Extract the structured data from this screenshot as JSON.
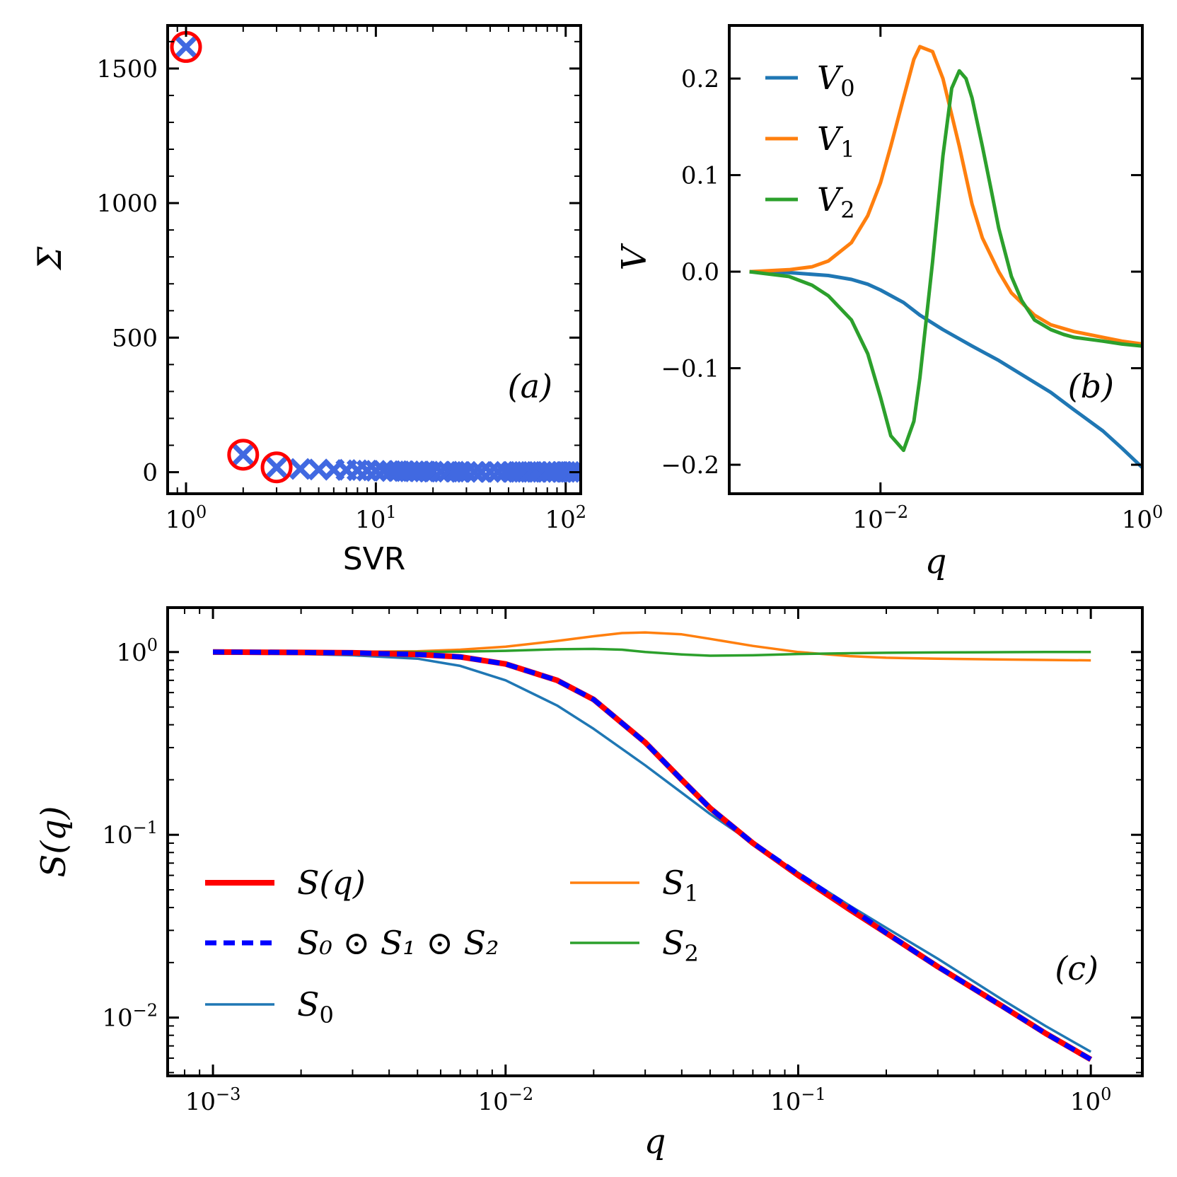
{
  "chart_data": [
    {
      "panel": "(a)",
      "type": "scatter",
      "xlabel": "SVR",
      "ylabel": "Σ",
      "xscale": "log",
      "xlim": [
        0.8,
        120
      ],
      "ylim": [
        -80,
        1660
      ],
      "xticks": [
        {
          "value": 1,
          "label": "10",
          "exp": "0"
        },
        {
          "value": 10,
          "label": "10",
          "exp": "1"
        },
        {
          "value": 100,
          "label": "10",
          "exp": "2"
        }
      ],
      "yticks": [
        {
          "value": 0,
          "label": "0"
        },
        {
          "value": 500,
          "label": "500"
        },
        {
          "value": 1000,
          "label": "1000"
        },
        {
          "value": 1500,
          "label": "1500"
        }
      ],
      "series": [
        {
          "marker": "x",
          "color": "#4169e1",
          "x": [
            1,
            2,
            3,
            4,
            5,
            6,
            7,
            8,
            9,
            10,
            11,
            12,
            13,
            14,
            15,
            16,
            17,
            18,
            19,
            20,
            22,
            24,
            26,
            28,
            30,
            33,
            36,
            40,
            44,
            48,
            52,
            56,
            60,
            65,
            70,
            75,
            80,
            85,
            90,
            95,
            100,
            105,
            110,
            115
          ],
          "y": [
            1580,
            65,
            18,
            12,
            10,
            9,
            8,
            7,
            6,
            5,
            5,
            4,
            4,
            4,
            3,
            3,
            3,
            3,
            2,
            2,
            2,
            2,
            2,
            1,
            1,
            1,
            1,
            1,
            1,
            1,
            1,
            1,
            1,
            1,
            1,
            1,
            1,
            1,
            1,
            1,
            1,
            1,
            1,
            1
          ]
        },
        {
          "marker": "circle",
          "color": "#ff0000",
          "x": [
            1,
            2,
            3
          ],
          "y": [
            1580,
            65,
            18
          ]
        }
      ]
    },
    {
      "panel": "(b)",
      "type": "line",
      "xlabel": "q",
      "ylabel": "V",
      "xscale": "log",
      "xlim": [
        0.0007,
        1.0
      ],
      "ylim": [
        -0.23,
        0.255
      ],
      "xticks": [
        {
          "value": 0.01,
          "label": "10",
          "exp": "−2"
        },
        {
          "value": 1,
          "label": "10",
          "exp": "0"
        }
      ],
      "yticks": [
        {
          "value": -0.2,
          "label": "−0.2"
        },
        {
          "value": -0.1,
          "label": "−0.1"
        },
        {
          "value": 0.0,
          "label": "0.0"
        },
        {
          "value": 0.1,
          "label": "0.1"
        },
        {
          "value": 0.2,
          "label": "0.2"
        }
      ],
      "legend": "top-left",
      "series": [
        {
          "name": "V",
          "sub": "0",
          "color": "#1f77b4",
          "x": [
            0.001,
            0.002,
            0.004,
            0.006,
            0.008,
            0.01,
            0.015,
            0.02,
            0.03,
            0.05,
            0.08,
            0.1,
            0.2,
            0.3,
            0.5,
            0.7,
            1.0
          ],
          "y": [
            0.0,
            -0.001,
            -0.004,
            -0.008,
            -0.013,
            -0.019,
            -0.032,
            -0.045,
            -0.06,
            -0.077,
            -0.092,
            -0.1,
            -0.125,
            -0.143,
            -0.165,
            -0.183,
            -0.203
          ]
        },
        {
          "name": "V",
          "sub": "1",
          "color": "#ff7f0e",
          "x": [
            0.001,
            0.002,
            0.003,
            0.004,
            0.006,
            0.008,
            0.01,
            0.012,
            0.015,
            0.018,
            0.02,
            0.025,
            0.03,
            0.04,
            0.05,
            0.06,
            0.08,
            0.1,
            0.15,
            0.2,
            0.3,
            0.5,
            0.7,
            1.0
          ],
          "y": [
            0.0,
            0.002,
            0.005,
            0.011,
            0.03,
            0.058,
            0.092,
            0.13,
            0.18,
            0.22,
            0.233,
            0.228,
            0.2,
            0.13,
            0.07,
            0.035,
            0.0,
            -0.022,
            -0.045,
            -0.055,
            -0.062,
            -0.068,
            -0.072,
            -0.075
          ]
        },
        {
          "name": "V",
          "sub": "2",
          "color": "#2ca02c",
          "x": [
            0.001,
            0.002,
            0.003,
            0.004,
            0.006,
            0.008,
            0.01,
            0.012,
            0.015,
            0.018,
            0.02,
            0.025,
            0.03,
            0.035,
            0.04,
            0.045,
            0.05,
            0.06,
            0.07,
            0.08,
            0.1,
            0.12,
            0.15,
            0.2,
            0.25,
            0.3,
            0.5,
            0.7,
            1.0
          ],
          "y": [
            0.0,
            -0.005,
            -0.014,
            -0.025,
            -0.05,
            -0.085,
            -0.13,
            -0.17,
            -0.185,
            -0.155,
            -0.11,
            0.01,
            0.12,
            0.19,
            0.208,
            0.2,
            0.18,
            0.13,
            0.085,
            0.045,
            -0.005,
            -0.03,
            -0.05,
            -0.06,
            -0.065,
            -0.068,
            -0.072,
            -0.075,
            -0.077
          ]
        }
      ]
    },
    {
      "panel": "(c)",
      "type": "line",
      "xlabel": "q",
      "ylabel": "S(q)",
      "xscale": "log",
      "yscale": "log",
      "xlim": [
        0.0007,
        1.5
      ],
      "ylim": [
        0.0048,
        1.75
      ],
      "xticks": [
        {
          "value": 0.001,
          "label": "10",
          "exp": "−3"
        },
        {
          "value": 0.01,
          "label": "10",
          "exp": "−2"
        },
        {
          "value": 0.1,
          "label": "10",
          "exp": "−1"
        },
        {
          "value": 1,
          "label": "10",
          "exp": "0"
        }
      ],
      "yticks": [
        {
          "value": 0.01,
          "label": "10",
          "exp": "−2"
        },
        {
          "value": 0.1,
          "label": "10",
          "exp": "−1"
        },
        {
          "value": 1,
          "label": "10",
          "exp": "0"
        }
      ],
      "legend": "lower-left",
      "series": [
        {
          "name": "S(q)",
          "color": "#ff0000",
          "style": "solid-thick",
          "x": [
            0.001,
            0.002,
            0.003,
            0.005,
            0.007,
            0.01,
            0.015,
            0.02,
            0.03,
            0.04,
            0.05,
            0.07,
            0.1,
            0.15,
            0.2,
            0.3,
            0.5,
            0.7,
            1.0
          ],
          "y": [
            1.0,
            0.995,
            0.99,
            0.97,
            0.94,
            0.86,
            0.7,
            0.55,
            0.32,
            0.2,
            0.14,
            0.09,
            0.06,
            0.039,
            0.029,
            0.019,
            0.0115,
            0.0082,
            0.0059
          ]
        },
        {
          "name": "S₀ ⊙ S₁ ⊙ S₂",
          "color": "#0000ff",
          "style": "dashed",
          "x": [
            0.001,
            0.002,
            0.003,
            0.005,
            0.007,
            0.01,
            0.015,
            0.02,
            0.03,
            0.04,
            0.05,
            0.07,
            0.1,
            0.15,
            0.2,
            0.3,
            0.5,
            0.7,
            1.0
          ],
          "y": [
            1.0,
            0.995,
            0.99,
            0.97,
            0.94,
            0.86,
            0.7,
            0.55,
            0.32,
            0.2,
            0.14,
            0.09,
            0.061,
            0.04,
            0.029,
            0.019,
            0.0115,
            0.0082,
            0.0059
          ]
        },
        {
          "name": "S",
          "sub": "0",
          "color": "#1f77b4",
          "style": "solid",
          "x": [
            0.001,
            0.002,
            0.003,
            0.005,
            0.007,
            0.01,
            0.015,
            0.02,
            0.03,
            0.04,
            0.05,
            0.07,
            0.1,
            0.15,
            0.2,
            0.3,
            0.5,
            0.7,
            1.0
          ],
          "y": [
            0.98,
            0.975,
            0.96,
            0.92,
            0.84,
            0.7,
            0.51,
            0.38,
            0.24,
            0.17,
            0.13,
            0.09,
            0.062,
            0.041,
            0.031,
            0.021,
            0.0125,
            0.009,
            0.0065
          ]
        },
        {
          "name": "S",
          "sub": "1",
          "color": "#ff7f0e",
          "style": "solid",
          "x": [
            0.001,
            0.003,
            0.005,
            0.007,
            0.01,
            0.015,
            0.02,
            0.025,
            0.03,
            0.04,
            0.05,
            0.07,
            0.1,
            0.15,
            0.2,
            0.3,
            0.5,
            0.7,
            1.0
          ],
          "y": [
            1.0,
            1.003,
            1.01,
            1.03,
            1.07,
            1.15,
            1.22,
            1.27,
            1.28,
            1.25,
            1.18,
            1.08,
            1.0,
            0.95,
            0.93,
            0.92,
            0.91,
            0.905,
            0.9
          ]
        },
        {
          "name": "S",
          "sub": "2",
          "color": "#2ca02c",
          "style": "solid",
          "x": [
            0.001,
            0.003,
            0.005,
            0.007,
            0.01,
            0.015,
            0.02,
            0.025,
            0.03,
            0.04,
            0.05,
            0.07,
            0.1,
            0.15,
            0.2,
            0.3,
            0.5,
            0.7,
            1.0
          ],
          "y": [
            1.0,
            1.0,
            1.001,
            1.005,
            1.015,
            1.035,
            1.04,
            1.03,
            1.0,
            0.97,
            0.955,
            0.96,
            0.975,
            0.985,
            0.99,
            0.995,
            0.998,
            1.0,
            1.0
          ]
        }
      ]
    }
  ]
}
